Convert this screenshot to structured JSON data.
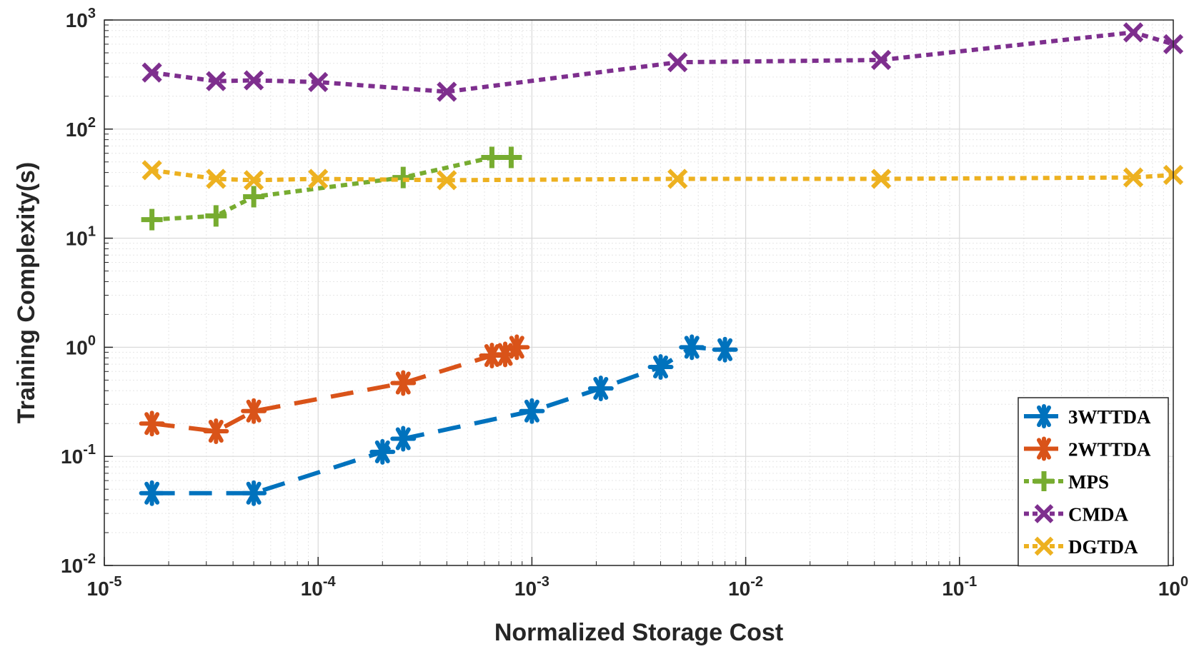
{
  "chart_data": {
    "type": "line",
    "xscale": "log",
    "yscale": "log",
    "xlim": [
      1e-05,
      1
    ],
    "ylim": [
      0.01,
      1000
    ],
    "xlabel": "Normalized Storage Cost",
    "ylabel": "Training Complexity(s)",
    "x_ticks": [
      {
        "base": "10",
        "exp": "-5",
        "value": 1e-05
      },
      {
        "base": "10",
        "exp": "-4",
        "value": 0.0001
      },
      {
        "base": "10",
        "exp": "-3",
        "value": 0.001
      },
      {
        "base": "10",
        "exp": "-2",
        "value": 0.01
      },
      {
        "base": "10",
        "exp": "-1",
        "value": 0.1
      },
      {
        "base": "10",
        "exp": "0",
        "value": 1
      }
    ],
    "y_ticks": [
      {
        "base": "10",
        "exp": "-2",
        "value": 0.01
      },
      {
        "base": "10",
        "exp": "-1",
        "value": 0.1
      },
      {
        "base": "10",
        "exp": "0",
        "value": 1
      },
      {
        "base": "10",
        "exp": "1",
        "value": 10
      },
      {
        "base": "10",
        "exp": "2",
        "value": 100
      },
      {
        "base": "10",
        "exp": "3",
        "value": 1000
      }
    ],
    "grid": true,
    "legend_position": "bottom-right",
    "series": [
      {
        "name": "3WTTDA",
        "color": "#0072BD",
        "line_style": "dashed",
        "marker": "asterisk",
        "x": [
          1.67e-05,
          5e-05,
          0.0002,
          0.00025,
          0.001,
          0.0021,
          0.004,
          0.0056,
          0.008
        ],
        "y": [
          0.046,
          0.046,
          0.11,
          0.145,
          0.26,
          0.42,
          0.66,
          1.0,
          0.95
        ]
      },
      {
        "name": "2WTTDA",
        "color": "#D95319",
        "line_style": "dashed",
        "marker": "asterisk",
        "x": [
          1.67e-05,
          3.33e-05,
          5e-05,
          0.00025,
          0.00065,
          0.00075,
          0.00085
        ],
        "y": [
          0.2,
          0.17,
          0.26,
          0.47,
          0.84,
          0.86,
          1.0
        ]
      },
      {
        "name": "MPS",
        "color": "#77AC30",
        "line_style": "dotted",
        "marker": "plus",
        "x": [
          1.67e-05,
          3.33e-05,
          5e-05,
          0.00025,
          0.00065,
          0.0008
        ],
        "y": [
          14.8,
          16.0,
          24.0,
          36.0,
          55.0,
          55.0
        ]
      },
      {
        "name": "CMDA",
        "color": "#7E2F8E",
        "line_style": "dotted",
        "marker": "x",
        "x": [
          1.67e-05,
          3.33e-05,
          5e-05,
          0.0001,
          0.0004,
          0.0048,
          0.043,
          0.65,
          1.0
        ],
        "y": [
          330,
          275,
          280,
          270,
          220,
          410,
          430,
          770,
          600
        ]
      },
      {
        "name": "DGTDA",
        "color": "#EDB120",
        "line_style": "dotted",
        "marker": "x",
        "x": [
          1.67e-05,
          3.33e-05,
          5e-05,
          0.0001,
          0.0004,
          0.0048,
          0.043,
          0.65,
          1.0
        ],
        "y": [
          42,
          35,
          34,
          35,
          34,
          35,
          35,
          36,
          38
        ]
      }
    ]
  }
}
